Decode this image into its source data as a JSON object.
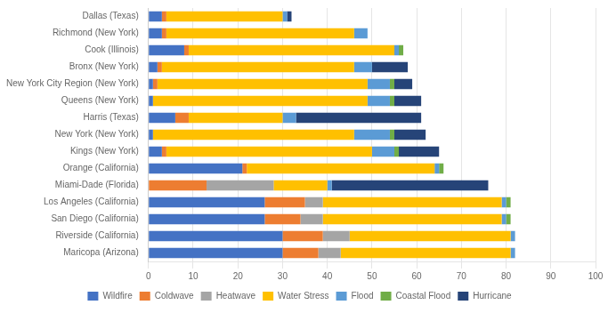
{
  "chart_data": {
    "type": "bar",
    "orientation": "horizontal",
    "stacked": true,
    "categories": [
      "Maricopa (Arizona)",
      "Riverside (California)",
      "San Diego (California)",
      "Los Angeles (California)",
      "Miami-Dade (Florida)",
      "Orange (California)",
      "Kings (New York)",
      "New York (New York)",
      "Harris (Texas)",
      "Queens (New York)",
      "New York City Region (New York)",
      "Bronx (New York)",
      "Cook (Illinois)",
      "Richmond (New York)",
      "Dallas (Texas)"
    ],
    "series": [
      {
        "name": "Wildfire",
        "color": "#4472C4",
        "values": [
          30,
          30,
          26,
          26,
          0,
          21,
          3,
          1,
          6,
          1,
          1,
          2,
          8,
          3,
          3
        ]
      },
      {
        "name": "Coldwave",
        "color": "#ED7D31",
        "values": [
          8,
          9,
          8,
          9,
          13,
          1,
          1,
          0,
          3,
          0,
          1,
          1,
          1,
          1,
          1
        ]
      },
      {
        "name": "Heatwave",
        "color": "#A5A5A5",
        "values": [
          5,
          6,
          5,
          4,
          15,
          0,
          0,
          0,
          0,
          0,
          0,
          0,
          0,
          0,
          0
        ]
      },
      {
        "name": "Water Stress",
        "color": "#FFC000",
        "values": [
          38,
          36,
          40,
          40,
          12,
          42,
          46,
          45,
          21,
          48,
          47,
          43,
          46,
          42,
          26
        ]
      },
      {
        "name": "Flood",
        "color": "#5B9BD5",
        "values": [
          1,
          1,
          1,
          1,
          1,
          1,
          5,
          8,
          3,
          5,
          5,
          4,
          1,
          3,
          1
        ]
      },
      {
        "name": "Coastal Flood",
        "color": "#70AD47",
        "values": [
          0,
          0,
          1,
          1,
          0,
          1,
          1,
          1,
          0,
          1,
          1,
          0,
          1,
          0,
          0
        ]
      },
      {
        "name": "Hurricane",
        "color": "#264478",
        "values": [
          0,
          0,
          0,
          0,
          35,
          0,
          9,
          7,
          28,
          6,
          4,
          8,
          0,
          0,
          1
        ]
      }
    ],
    "xlim": [
      0,
      100
    ],
    "xticks": [
      0,
      10,
      20,
      30,
      40,
      50,
      60,
      70,
      80,
      90,
      100
    ],
    "grid": true,
    "legend": "bottom"
  }
}
